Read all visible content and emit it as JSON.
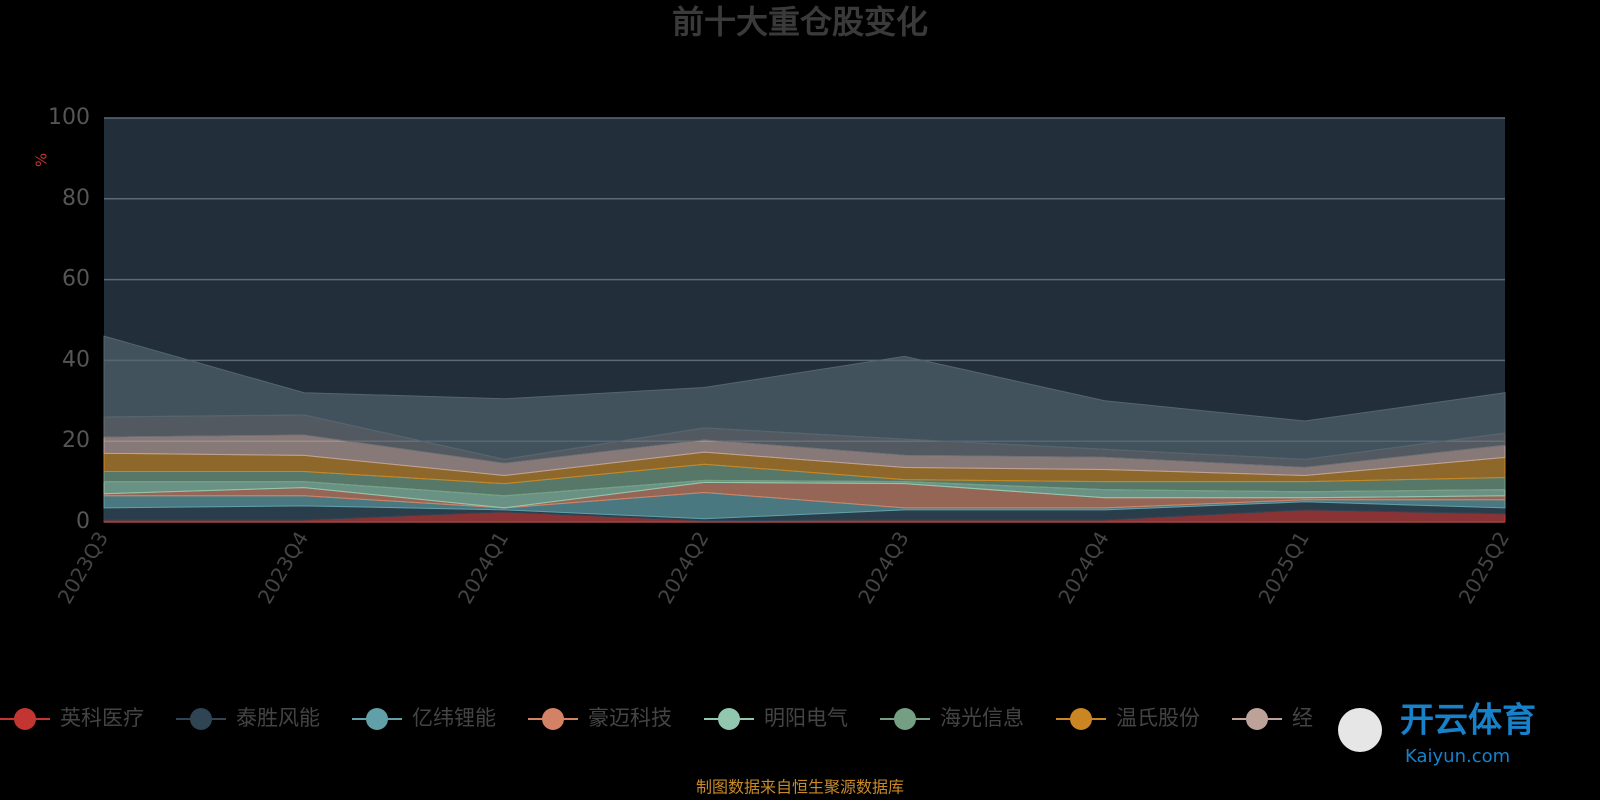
{
  "chart_data": {
    "type": "stacked-area",
    "title": "前十大重仓股变化",
    "y_label": "%",
    "source": "制图数据来自恒生聚源数据库",
    "watermark": [
      "开云体育",
      "Kaiyun.com"
    ],
    "categories": [
      "2023Q3",
      "2023Q4",
      "2024Q1",
      "2024Q2",
      "2024Q3",
      "2024Q4",
      "2025Q1",
      "2025Q2"
    ],
    "ylim": [
      0,
      100
    ],
    "yticks": [
      0,
      20,
      40,
      60,
      80,
      100
    ],
    "grid": true,
    "series": [
      {
        "name": "英科医疗",
        "color": "#c23531",
        "values": [
          0.5,
          0.5,
          2.5,
          0.3,
          0.5,
          0.5,
          3,
          2
        ]
      },
      {
        "name": "泰胜风能",
        "color": "#2f4554",
        "values": [
          3,
          3.5,
          0.5,
          0.5,
          2.5,
          2.5,
          2,
          1.5
        ]
      },
      {
        "name": "亿纬锂能",
        "color": "#61a0a8",
        "values": [
          3,
          2.5,
          0.5,
          6.5,
          0.5,
          0.5,
          0.5,
          2
        ]
      },
      {
        "name": "豪迈科技",
        "color": "#d48265",
        "values": [
          0.5,
          2,
          0,
          2.5,
          6,
          2.5,
          0.5,
          1
        ]
      },
      {
        "name": "明阳电气",
        "color": "#91c7ae",
        "values": [
          3,
          1.5,
          3,
          0.5,
          0.5,
          2,
          1.5,
          1.5
        ]
      },
      {
        "name": "海光信息",
        "color": "#749f83",
        "values": [
          2.5,
          2.5,
          3,
          4,
          0.5,
          2,
          2.5,
          3
        ]
      },
      {
        "name": "温氏股份",
        "color": "#ca8622",
        "values": [
          4.5,
          4,
          2,
          3,
          3,
          3,
          1.5,
          5
        ]
      },
      {
        "name": "经",
        "color": "#bda29a",
        "values": [
          4,
          5,
          3,
          3,
          3,
          3,
          2,
          3
        ]
      },
      {
        "color": "#6e7074",
        "values": [
          5,
          5,
          1,
          3,
          4,
          2,
          2,
          3
        ]
      },
      {
        "color": "#546570",
        "values": [
          20,
          5.5,
          15,
          10,
          20.5,
          12,
          9.5,
          10
        ]
      }
    ]
  }
}
